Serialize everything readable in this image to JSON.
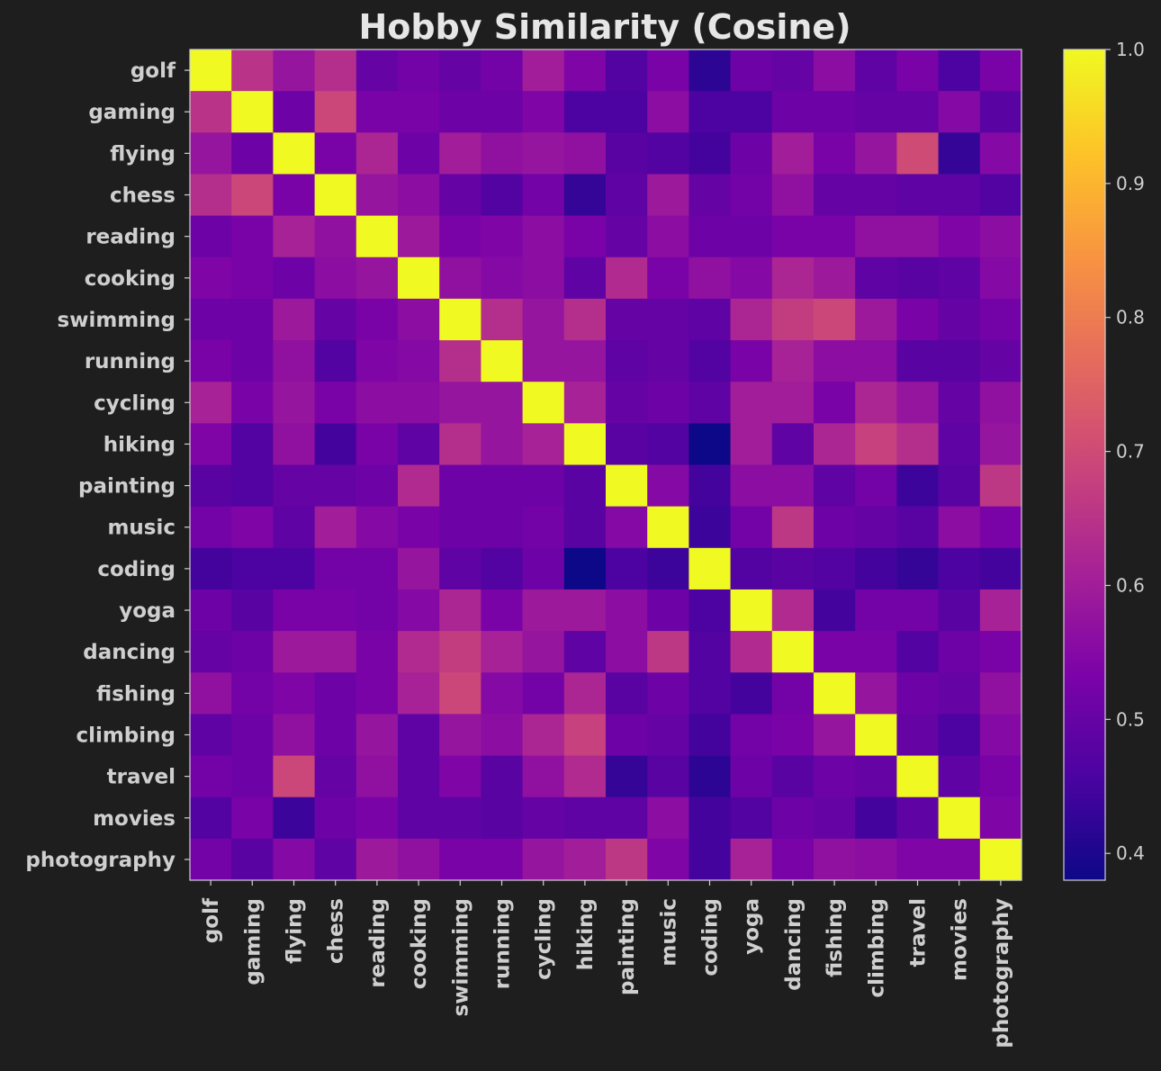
{
  "chart_data": {
    "type": "heatmap",
    "title": "Hobby Similarity (Cosine)",
    "colormap": "plasma",
    "colorbar": {
      "range": [
        0.38,
        1.0
      ],
      "ticks": [
        "0.4",
        "0.5",
        "0.6",
        "0.7",
        "0.8",
        "0.9",
        "1.0"
      ]
    },
    "labels": [
      "golf",
      "gaming",
      "flying",
      "chess",
      "reading",
      "cooking",
      "swimming",
      "running",
      "cycling",
      "hiking",
      "painting",
      "music",
      "coding",
      "yoga",
      "dancing",
      "fishing",
      "climbing",
      "travel",
      "movies",
      "photography"
    ],
    "values": [
      [
        1.0,
        0.65,
        0.58,
        0.64,
        0.5,
        0.52,
        0.5,
        0.52,
        0.6,
        0.54,
        0.47,
        0.53,
        0.42,
        0.51,
        0.5,
        0.56,
        0.49,
        0.53,
        0.46,
        0.53
      ],
      [
        0.65,
        1.0,
        0.51,
        0.69,
        0.53,
        0.53,
        0.51,
        0.51,
        0.54,
        0.46,
        0.46,
        0.56,
        0.46,
        0.46,
        0.51,
        0.51,
        0.5,
        0.5,
        0.55,
        0.48
      ],
      [
        0.58,
        0.51,
        1.0,
        0.53,
        0.62,
        0.51,
        0.6,
        0.57,
        0.58,
        0.57,
        0.48,
        0.47,
        0.45,
        0.51,
        0.6,
        0.53,
        0.58,
        0.7,
        0.43,
        0.55
      ],
      [
        0.64,
        0.69,
        0.53,
        1.0,
        0.58,
        0.56,
        0.5,
        0.47,
        0.52,
        0.43,
        0.49,
        0.59,
        0.5,
        0.52,
        0.57,
        0.5,
        0.5,
        0.49,
        0.49,
        0.47
      ],
      [
        0.51,
        0.53,
        0.61,
        0.57,
        1.0,
        0.59,
        0.53,
        0.54,
        0.56,
        0.53,
        0.5,
        0.56,
        0.51,
        0.51,
        0.53,
        0.53,
        0.57,
        0.57,
        0.54,
        0.56
      ],
      [
        0.54,
        0.53,
        0.51,
        0.56,
        0.58,
        1.0,
        0.57,
        0.55,
        0.56,
        0.49,
        0.63,
        0.53,
        0.57,
        0.55,
        0.62,
        0.59,
        0.49,
        0.48,
        0.49,
        0.55
      ],
      [
        0.51,
        0.51,
        0.59,
        0.5,
        0.53,
        0.56,
        1.0,
        0.64,
        0.58,
        0.64,
        0.5,
        0.5,
        0.49,
        0.62,
        0.67,
        0.69,
        0.59,
        0.53,
        0.5,
        0.52
      ],
      [
        0.53,
        0.51,
        0.57,
        0.47,
        0.54,
        0.55,
        0.64,
        1.0,
        0.58,
        0.58,
        0.49,
        0.5,
        0.47,
        0.53,
        0.61,
        0.56,
        0.56,
        0.48,
        0.48,
        0.5
      ],
      [
        0.61,
        0.53,
        0.58,
        0.53,
        0.56,
        0.56,
        0.58,
        0.58,
        1.0,
        0.61,
        0.5,
        0.51,
        0.49,
        0.6,
        0.6,
        0.53,
        0.62,
        0.58,
        0.5,
        0.57
      ],
      [
        0.54,
        0.47,
        0.57,
        0.45,
        0.53,
        0.49,
        0.64,
        0.58,
        0.61,
        1.0,
        0.48,
        0.47,
        0.38,
        0.6,
        0.49,
        0.62,
        0.68,
        0.64,
        0.49,
        0.58
      ],
      [
        0.48,
        0.47,
        0.5,
        0.5,
        0.51,
        0.63,
        0.51,
        0.51,
        0.51,
        0.48,
        1.0,
        0.55,
        0.45,
        0.56,
        0.56,
        0.49,
        0.52,
        0.44,
        0.48,
        0.66
      ],
      [
        0.52,
        0.54,
        0.49,
        0.6,
        0.55,
        0.53,
        0.51,
        0.51,
        0.52,
        0.48,
        0.55,
        1.0,
        0.44,
        0.52,
        0.66,
        0.51,
        0.5,
        0.48,
        0.56,
        0.53
      ],
      [
        0.45,
        0.46,
        0.46,
        0.52,
        0.52,
        0.58,
        0.49,
        0.47,
        0.51,
        0.38,
        0.46,
        0.44,
        1.0,
        0.47,
        0.48,
        0.47,
        0.45,
        0.43,
        0.46,
        0.45
      ],
      [
        0.51,
        0.48,
        0.53,
        0.53,
        0.52,
        0.55,
        0.62,
        0.53,
        0.59,
        0.59,
        0.56,
        0.51,
        0.46,
        1.0,
        0.63,
        0.45,
        0.52,
        0.52,
        0.48,
        0.61
      ],
      [
        0.5,
        0.51,
        0.59,
        0.59,
        0.53,
        0.63,
        0.67,
        0.61,
        0.58,
        0.49,
        0.56,
        0.66,
        0.47,
        0.63,
        1.0,
        0.53,
        0.53,
        0.47,
        0.51,
        0.53
      ],
      [
        0.57,
        0.52,
        0.54,
        0.51,
        0.53,
        0.61,
        0.69,
        0.55,
        0.52,
        0.62,
        0.48,
        0.51,
        0.47,
        0.45,
        0.52,
        1.0,
        0.58,
        0.51,
        0.5,
        0.57
      ],
      [
        0.49,
        0.51,
        0.57,
        0.51,
        0.58,
        0.49,
        0.58,
        0.56,
        0.62,
        0.68,
        0.51,
        0.5,
        0.45,
        0.52,
        0.53,
        0.58,
        1.0,
        0.5,
        0.46,
        0.55
      ],
      [
        0.52,
        0.51,
        0.69,
        0.5,
        0.57,
        0.49,
        0.54,
        0.48,
        0.57,
        0.63,
        0.43,
        0.48,
        0.42,
        0.51,
        0.48,
        0.51,
        0.5,
        1.0,
        0.49,
        0.53
      ],
      [
        0.47,
        0.53,
        0.44,
        0.51,
        0.53,
        0.49,
        0.49,
        0.48,
        0.5,
        0.49,
        0.49,
        0.56,
        0.45,
        0.47,
        0.51,
        0.5,
        0.45,
        0.49,
        1.0,
        0.54
      ],
      [
        0.52,
        0.48,
        0.55,
        0.49,
        0.59,
        0.57,
        0.53,
        0.53,
        0.58,
        0.6,
        0.66,
        0.54,
        0.45,
        0.61,
        0.53,
        0.57,
        0.56,
        0.54,
        0.54,
        1.0
      ]
    ]
  }
}
